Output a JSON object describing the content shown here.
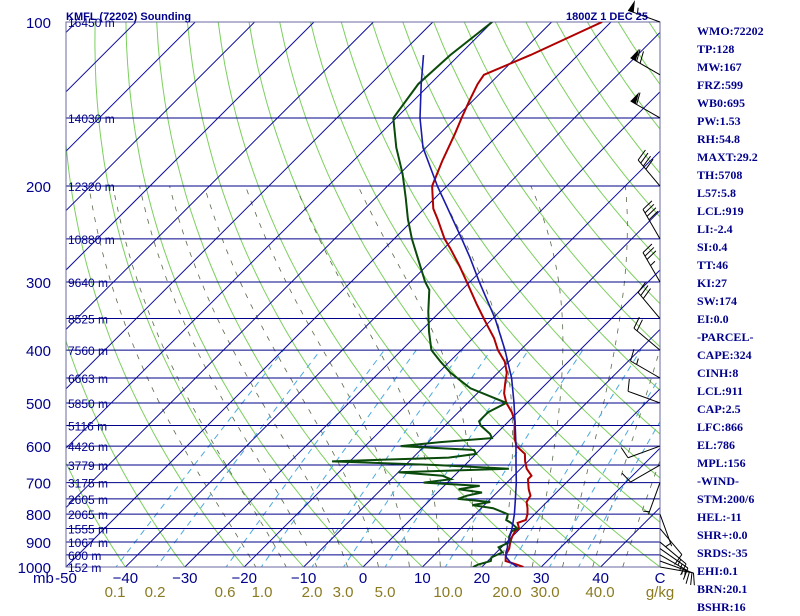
{
  "header": {
    "title": "KMFL (72202) Sounding",
    "timestamp": "1800Z  1 DEC 25"
  },
  "colors": {
    "isobar": "#00008b",
    "isotherm": "#0b0b9c",
    "dry_adiabat": "#7ccf5e",
    "moist_adiabat": "#5a6a4a",
    "mixing_ratio": "#4aa8e0",
    "temperature": "#b00000",
    "dewpoint": "#0a4a0a",
    "parcel": "#1a1aaa",
    "text": "#00008b",
    "mixing_label": "#8a7a20"
  },
  "chart_data": {
    "type": "line",
    "subtype": "skew-t log-p sounding",
    "title": "KMFL (72202) Sounding",
    "xlabel": "C",
    "ylabel": "mb",
    "xlim": [
      -50,
      50
    ],
    "ylim": [
      1000,
      100
    ],
    "y_scale": "log",
    "grid": true,
    "pressure_levels": [
      {
        "p": 100,
        "label": "100",
        "h": "16450 m"
      },
      {
        "p": 150,
        "label": "",
        "h": "14030 m"
      },
      {
        "p": 200,
        "label": "200",
        "h": "12320 m"
      },
      {
        "p": 250,
        "label": "",
        "h": "10880 m"
      },
      {
        "p": 300,
        "label": "300",
        "h": "9640 m"
      },
      {
        "p": 350,
        "label": "",
        "h": "8525 m"
      },
      {
        "p": 400,
        "label": "400",
        "h": "7560 m"
      },
      {
        "p": 450,
        "label": "",
        "h": "6663 m"
      },
      {
        "p": 500,
        "label": "500",
        "h": "5850 m"
      },
      {
        "p": 550,
        "label": "",
        "h": "5116 m"
      },
      {
        "p": 600,
        "label": "600",
        "h": "4426 m"
      },
      {
        "p": 650,
        "label": "",
        "h": "3779 m"
      },
      {
        "p": 700,
        "label": "700",
        "h": "3175 m"
      },
      {
        "p": 750,
        "label": "",
        "h": "2605 m"
      },
      {
        "p": 800,
        "label": "800",
        "h": "2065 m"
      },
      {
        "p": 850,
        "label": "",
        "h": "1555 m"
      },
      {
        "p": 900,
        "label": "900",
        "h": "1067 m"
      },
      {
        "p": 950,
        "label": "",
        "h": "600 m"
      },
      {
        "p": 1000,
        "label": "1000",
        "h": "152 m"
      }
    ],
    "x_ticks": [
      -50,
      -40,
      -30,
      -20,
      -10,
      0,
      10,
      20,
      30,
      40
    ],
    "x_tick_labels": [
      "-50",
      "−40",
      "−30",
      "−20",
      "−10",
      "0",
      "10",
      "20",
      "30",
      "40"
    ],
    "y_axis_unit": "mb",
    "mixing_ratio_labels": [
      "0.1",
      "0.2",
      "0.6",
      "1.0",
      "2.0",
      "3.0",
      "5.0",
      "10.0",
      "20.0",
      "30.0",
      "40.0"
    ],
    "mixing_ratio_unit": "g/kg",
    "series": [
      {
        "key": "temperature",
        "points": [
          [
            1000,
            27
          ],
          [
            990,
            25.5
          ],
          [
            975,
            23
          ],
          [
            950,
            22
          ],
          [
            925,
            21.5
          ],
          [
            900,
            20.6
          ],
          [
            880,
            20
          ],
          [
            860,
            19.6
          ],
          [
            850,
            19.8
          ],
          [
            830,
            18.6
          ],
          [
            820,
            19.5
          ],
          [
            800,
            18.8
          ],
          [
            780,
            17.8
          ],
          [
            760,
            16.6
          ],
          [
            740,
            16.2
          ],
          [
            720,
            14.8
          ],
          [
            700,
            13.6
          ],
          [
            690,
            13
          ],
          [
            680,
            13
          ],
          [
            660,
            11
          ],
          [
            640,
            9.5
          ],
          [
            620,
            8.2
          ],
          [
            600,
            5.5
          ],
          [
            580,
            3.8
          ],
          [
            560,
            2.4
          ],
          [
            540,
            1
          ],
          [
            520,
            -1
          ],
          [
            500,
            -3.5
          ],
          [
            480,
            -5.5
          ],
          [
            460,
            -7
          ],
          [
            440,
            -8.5
          ],
          [
            420,
            -10.7
          ],
          [
            400,
            -13.8
          ],
          [
            380,
            -16.5
          ],
          [
            360,
            -19.8
          ],
          [
            350,
            -21.5
          ],
          [
            330,
            -25
          ],
          [
            300,
            -30.5
          ],
          [
            280,
            -34.5
          ],
          [
            260,
            -39
          ],
          [
            250,
            -41.5
          ],
          [
            230,
            -46
          ],
          [
            220,
            -48.5
          ],
          [
            200,
            -52.5
          ],
          [
            180,
            -55
          ],
          [
            160,
            -57.5
          ],
          [
            150,
            -59
          ],
          [
            140,
            -60.5
          ],
          [
            130,
            -62
          ],
          [
            125,
            -62.5
          ],
          [
            115,
            -58
          ],
          [
            100,
            -51.5
          ]
        ]
      },
      {
        "key": "dewpoint",
        "points": [
          [
            1000,
            18.5
          ],
          [
            990,
            19
          ],
          [
            975,
            20.5
          ],
          [
            960,
            20
          ],
          [
            940,
            21
          ],
          [
            920,
            19.5
          ],
          [
            900,
            20.5
          ],
          [
            880,
            19.5
          ],
          [
            860,
            19
          ],
          [
            850,
            19.5
          ],
          [
            830,
            17.5
          ],
          [
            820,
            16.2
          ],
          [
            800,
            15.5
          ],
          [
            780,
            12
          ],
          [
            770,
            8
          ],
          [
            760,
            10.5
          ],
          [
            750,
            4.5
          ],
          [
            740,
            5.5
          ],
          [
            730,
            7.5
          ],
          [
            720,
            3
          ],
          [
            710,
            6
          ],
          [
            700,
            -4
          ],
          [
            690,
            0
          ],
          [
            680,
            -2
          ],
          [
            670,
            -10
          ],
          [
            660,
            8
          ],
          [
            650,
            -5
          ],
          [
            640,
            -23
          ],
          [
            630,
            -4
          ],
          [
            620,
            0
          ],
          [
            610,
            -1
          ],
          [
            600,
            -14
          ],
          [
            590,
            -8
          ],
          [
            580,
            0
          ],
          [
            570,
            -1
          ],
          [
            550,
            -4
          ],
          [
            540,
            -5
          ],
          [
            520,
            -5
          ],
          [
            500,
            -3.5
          ],
          [
            470,
            -12
          ],
          [
            440,
            -18
          ],
          [
            420,
            -21.5
          ],
          [
            400,
            -25
          ],
          [
            370,
            -28.5
          ],
          [
            340,
            -32
          ],
          [
            310,
            -35.5
          ],
          [
            300,
            -37.5
          ],
          [
            270,
            -43
          ],
          [
            250,
            -47
          ],
          [
            230,
            -51
          ],
          [
            210,
            -55
          ],
          [
            190,
            -59.5
          ],
          [
            170,
            -65
          ],
          [
            150,
            -70.5
          ],
          [
            130,
            -72
          ],
          [
            115,
            -71.5
          ],
          [
            100,
            -70
          ]
        ]
      },
      {
        "key": "parcel",
        "points": [
          [
            1000,
            26
          ],
          [
            980,
            24
          ],
          [
            960,
            22.5
          ],
          [
            940,
            21.6
          ],
          [
            920,
            21
          ],
          [
            911,
            20.6
          ],
          [
            880,
            19.6
          ],
          [
            850,
            18.6
          ],
          [
            800,
            16.6
          ],
          [
            750,
            14.2
          ],
          [
            700,
            11.6
          ],
          [
            650,
            8.6
          ],
          [
            600,
            5.4
          ],
          [
            550,
            1.8
          ],
          [
            500,
            -2.2
          ],
          [
            450,
            -6.8
          ],
          [
            400,
            -12.6
          ],
          [
            350,
            -19.6
          ],
          [
            300,
            -28.4
          ],
          [
            270,
            -34.2
          ],
          [
            250,
            -38.6
          ],
          [
            200,
            -51.6
          ],
          [
            170,
            -60.5
          ],
          [
            150,
            -66
          ],
          [
            130,
            -71.5
          ],
          [
            115,
            -76
          ]
        ]
      }
    ],
    "wind_barbs": [
      {
        "p": 1000,
        "dir": 100,
        "spd": 10
      },
      {
        "p": 975,
        "dir": 110,
        "spd": 15
      },
      {
        "p": 950,
        "dir": 120,
        "spd": 15
      },
      {
        "p": 925,
        "dir": 125,
        "spd": 15
      },
      {
        "p": 900,
        "dir": 130,
        "spd": 15
      },
      {
        "p": 850,
        "dir": 140,
        "spd": 10
      },
      {
        "p": 800,
        "dir": 160,
        "spd": 5
      },
      {
        "p": 700,
        "dir": 200,
        "spd": 5
      },
      {
        "p": 650,
        "dir": 240,
        "spd": 10
      },
      {
        "p": 600,
        "dir": 250,
        "spd": 10
      },
      {
        "p": 500,
        "dir": 290,
        "spd": 10
      },
      {
        "p": 450,
        "dir": 300,
        "spd": 15
      },
      {
        "p": 400,
        "dir": 310,
        "spd": 20
      },
      {
        "p": 350,
        "dir": 320,
        "spd": 30
      },
      {
        "p": 300,
        "dir": 330,
        "spd": 35
      },
      {
        "p": 250,
        "dir": 330,
        "spd": 40
      },
      {
        "p": 200,
        "dir": 320,
        "spd": 40
      },
      {
        "p": 150,
        "dir": 300,
        "spd": 60
      },
      {
        "p": 125,
        "dir": 300,
        "spd": 70
      },
      {
        "p": 100,
        "dir": 290,
        "spd": 55
      }
    ]
  },
  "sidebar": [
    "WMO:72202",
    "TP:128",
    "MW:167",
    "FRZ:599",
    "WB0:695",
    "PW:1.53",
    "RH:54.8",
    "MAXT:29.2",
    "TH:5708",
    "L57:5.8",
    "LCL:919",
    "LI:-2.4",
    "SI:0.4",
    "TT:46",
    "KI:27",
    "SW:174",
    "EI:0.0",
    "-PARCEL-",
    "CAPE:324",
    "CINH:8",
    "LCL:911",
    "CAP:2.5",
    "LFC:866",
    "EL:786",
    "MPL:156",
    "-WIND-",
    "STM:200/6",
    "HEL:-11",
    "SHR+:0.0",
    "SRDS:-35",
    "EHI:0.1",
    "BRN:20.1",
    "BSHR:16"
  ]
}
